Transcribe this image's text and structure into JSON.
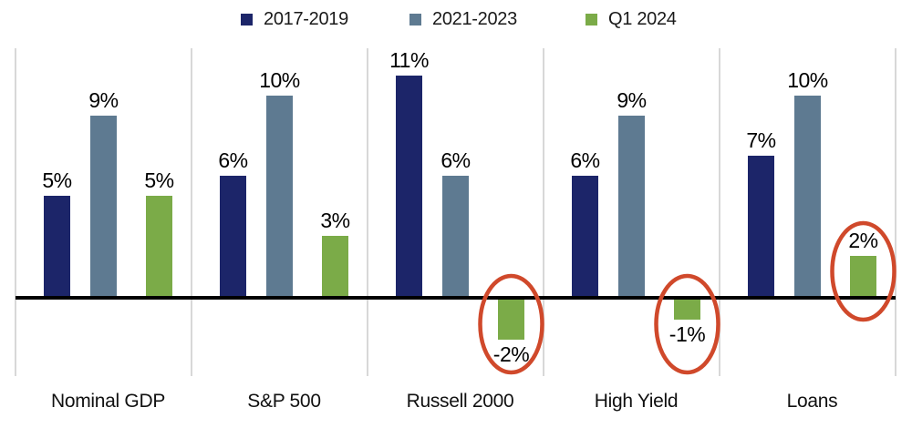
{
  "chart": {
    "chart_data": {
      "type": "bar",
      "categories": [
        "Nominal GDP",
        "S&P 500",
        "Russell 2000",
        "High Yield",
        "Loans"
      ],
      "series": [
        {
          "name": "2017-2019",
          "color": "#1C2569",
          "values": [
            5,
            6,
            11,
            6,
            7
          ]
        },
        {
          "name": "2021-2023",
          "color": "#5E7A91",
          "values": [
            9,
            10,
            6,
            9,
            10
          ]
        },
        {
          "name": "Q1 2024",
          "color": "#7BAB48",
          "values": [
            5,
            3,
            -2,
            -1,
            2
          ]
        }
      ],
      "data_labels": [
        [
          "5%",
          "6%",
          "11%",
          "6%",
          "7%"
        ],
        [
          "9%",
          "10%",
          "6%",
          "9%",
          "10%"
        ],
        [
          "5%",
          "3%",
          "-2%",
          "-1%",
          "2%"
        ]
      ],
      "title": "",
      "xlabel": "",
      "ylabel": "",
      "ylim": [
        -4,
        12.4
      ],
      "grid": "vertical-separators-only",
      "legend_position": "top-center",
      "separator_color": "#D8D8D8",
      "baseline_color": "#000000",
      "label_color": "#000000",
      "annotations": [
        {
          "shape": "ellipse",
          "color": "#D0492B",
          "category": "Russell 2000",
          "series": "Q1 2024",
          "value_label": "-2%"
        },
        {
          "shape": "ellipse",
          "color": "#D0492B",
          "category": "High Yield",
          "series": "Q1 2024",
          "value_label": "-1%"
        },
        {
          "shape": "ellipse",
          "color": "#D0492B",
          "category": "Loans",
          "series": "Q1 2024",
          "value_label": "2%"
        }
      ]
    }
  }
}
